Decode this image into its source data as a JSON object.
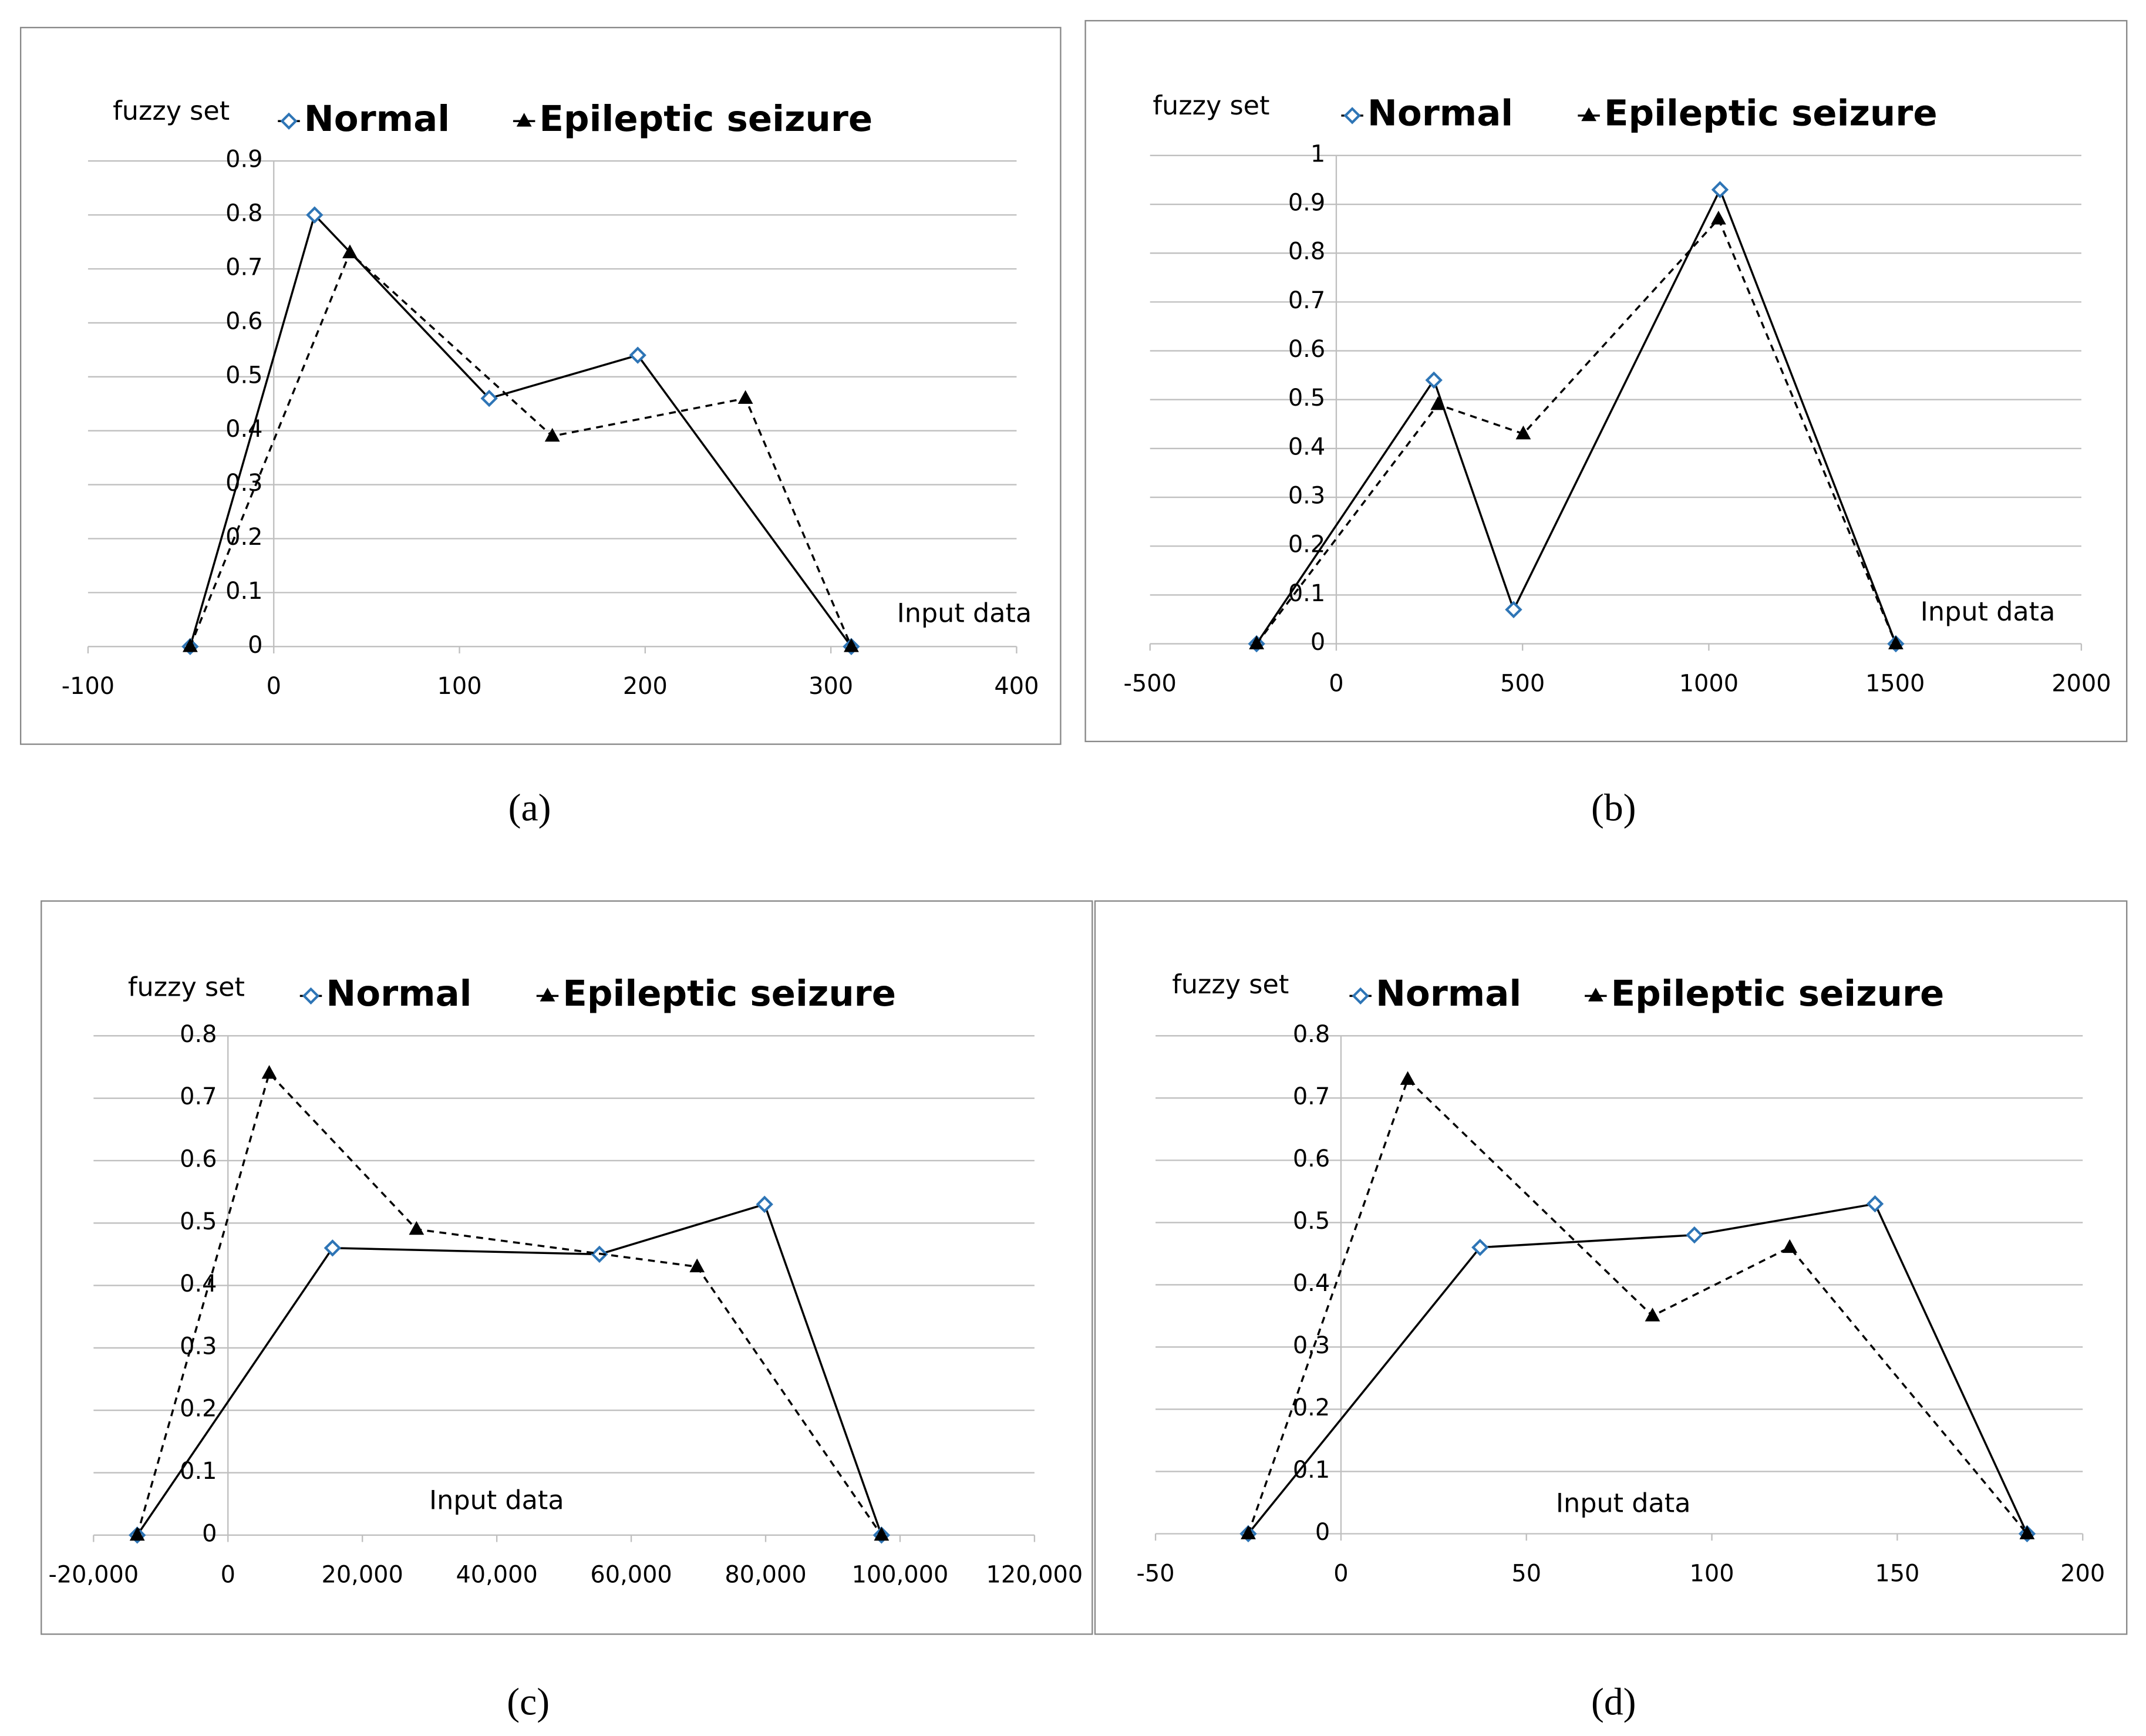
{
  "chart_data": [
    {
      "type": "line",
      "caption": "(a)",
      "y_label": "fuzzy set",
      "x_label": "Input data",
      "xlim": [
        -100,
        400
      ],
      "xticks": [
        -100,
        0,
        100,
        200,
        300,
        400
      ],
      "ylim": [
        0,
        0.9
      ],
      "yticks": [
        0,
        0.1,
        0.2,
        0.3,
        0.4,
        0.5,
        0.6,
        0.7,
        0.8,
        0.9
      ],
      "grid": true,
      "series": [
        {
          "name": "Normal",
          "color": "#2e75b6",
          "line_style": "solid",
          "marker": "diamond",
          "x": [
            -45,
            22,
            116,
            196,
            311
          ],
          "values": [
            0,
            0.8,
            0.46,
            0.54,
            0
          ]
        },
        {
          "name": "Epileptic seizure",
          "color": "#000000",
          "line_style": "dashed",
          "marker": "triangle",
          "x": [
            -45,
            41,
            150,
            254,
            311
          ],
          "values": [
            0,
            0.73,
            0.39,
            0.46,
            0
          ]
        }
      ]
    },
    {
      "type": "line",
      "caption": "(b)",
      "y_label": "fuzzy set",
      "x_label": "Input data",
      "xlim": [
        -500,
        2000
      ],
      "xticks": [
        -500,
        0,
        500,
        1000,
        1500,
        2000
      ],
      "ylim": [
        0,
        1
      ],
      "yticks": [
        0,
        0.1,
        0.2,
        0.3,
        0.4,
        0.5,
        0.6,
        0.7,
        0.8,
        0.9,
        1
      ],
      "grid": true,
      "series": [
        {
          "name": "Normal",
          "color": "#2e75b6",
          "line_style": "solid",
          "marker": "diamond",
          "x": [
            -214,
            262,
            476,
            1030,
            1502
          ],
          "values": [
            0,
            0.54,
            0.07,
            0.93,
            0
          ]
        },
        {
          "name": "Epileptic seizure",
          "color": "#000000",
          "line_style": "dashed",
          "marker": "triangle",
          "x": [
            -214,
            273,
            502,
            1026,
            1502
          ],
          "values": [
            0,
            0.49,
            0.43,
            0.87,
            0
          ]
        }
      ]
    },
    {
      "type": "line",
      "caption": "(c)",
      "y_label": "fuzzy set",
      "x_label": "Input data",
      "xlim": [
        -20000,
        120000
      ],
      "xticks": [
        {
          "value": -20000,
          "label": "-20,000"
        },
        0,
        {
          "value": 20000,
          "label": "20,000"
        },
        {
          "value": 40000,
          "label": "40,000"
        },
        {
          "value": 60000,
          "label": "60,000"
        },
        {
          "value": 80000,
          "label": "80,000"
        },
        {
          "value": 100000,
          "label": "100,000"
        },
        {
          "value": 120000,
          "label": "120,000"
        }
      ],
      "ylim": [
        0,
        0.8
      ],
      "yticks": [
        0,
        0.1,
        0.2,
        0.3,
        0.4,
        0.5,
        0.6,
        0.7,
        0.8
      ],
      "grid": true,
      "series": [
        {
          "name": "Normal",
          "color": "#2e75b6",
          "line_style": "solid",
          "marker": "diamond",
          "x": [
            -13500,
            15560,
            55270,
            79840,
            97240
          ],
          "values": [
            0,
            0.46,
            0.45,
            0.53,
            0
          ]
        },
        {
          "name": "Epileptic seizure",
          "color": "#000000",
          "line_style": "dashed",
          "marker": "triangle",
          "x": [
            -13500,
            6140,
            28050,
            69800,
            97240
          ],
          "values": [
            0,
            0.74,
            0.49,
            0.43,
            0
          ]
        }
      ]
    },
    {
      "type": "line",
      "caption": "(d)",
      "y_label": "fuzzy set",
      "x_label": "Input data",
      "xlim": [
        -50,
        200
      ],
      "xticks": [
        -50,
        0,
        50,
        100,
        150,
        200
      ],
      "ylim": [
        0,
        0.8
      ],
      "yticks": [
        0,
        0.1,
        0.2,
        0.3,
        0.4,
        0.5,
        0.6,
        0.7,
        0.8
      ],
      "grid": true,
      "series": [
        {
          "name": "Normal",
          "color": "#2e75b6",
          "line_style": "solid",
          "marker": "diamond",
          "x": [
            -25,
            37.5,
            95.3,
            144,
            185
          ],
          "values": [
            0,
            0.46,
            0.48,
            0.53,
            0
          ]
        },
        {
          "name": "Epileptic seizure",
          "color": "#000000",
          "line_style": "dashed",
          "marker": "triangle",
          "x": [
            -25,
            18,
            84,
            121,
            185
          ],
          "values": [
            0,
            0.73,
            0.35,
            0.46,
            0
          ]
        }
      ]
    }
  ]
}
